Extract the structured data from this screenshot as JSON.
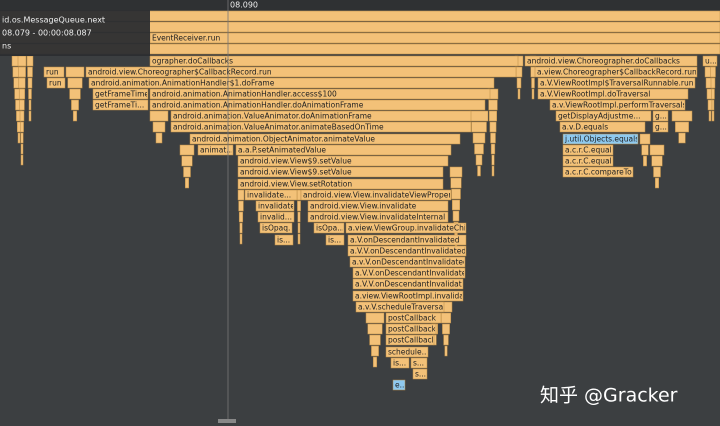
{
  "ruler": "08.090",
  "tooltip": {
    "title": "id.os.MessageQueue.next",
    "time": "08.079 - 00:00:08.087",
    "unit": "ns"
  },
  "slices": [
    "EventReceiver.run",
    "ographer.doCallbacks",
    "android.view.Choreographer.doCallbacks",
    "u...",
    "run",
    "android.view.Choreographer$CallbackRecord.run",
    "a.view.Choreographer$CallbackRecord.run",
    "run",
    "android.animation.AnimationHandler$1.doFrame",
    "a.V.ViewRootImpl$TraversalRunnable.run",
    "getFrameTime",
    "android.animation.AnimationHandler.access$100",
    "a.V.ViewRootImpl.doTraversal",
    "getFrameTi...",
    "android.animation.AnimationHandler.doAnimationFrame",
    "a.v.ViewRootImpl.performTraversals",
    "android.animation.ValueAnimator.doAnimationFrame",
    "getDisplayAdjustme...",
    "g...",
    "android.animation.ValueAnimator.animateBasedOnTime",
    "a.v.D.equals",
    "g...",
    "android.animation.ObjectAnimator.animateValue",
    "j.util.Objects.equals",
    "animat...",
    "a.a.P.setAnimatedValue",
    "a.c.r.C.equals",
    "android.view.View$9.setValue",
    "a.c.r.C.equals",
    "android.view.View$9.setValue",
    "a.c.r.C.compareTo",
    "android.view.View.setRotation",
    "invalidate...",
    "android.view.View.invalidateViewProperty",
    "invalidate",
    "android.view.View.invalidate",
    "invalid...",
    "android.view.View.invalidateInternal",
    "isOpaq...",
    "isOpa...",
    "a.view.ViewGroup.invalidateChild",
    "is...",
    "is...",
    "a.V.onDescendantInvalidated",
    "a.V.V.onDescendantInvalidated",
    "a.v.V.onDescendantInvalidated",
    "a.V.V.onDescendantInvalidated",
    "a.V.V.onDescendantInvalidated",
    "a.view.ViewRootImpl.invalidate",
    "a.v.V.scheduleTraversals",
    "postCallback",
    "postCallback...",
    "postCallback...",
    "schedule...",
    "is...",
    "s...",
    "s...",
    "e..."
  ],
  "watermark": "知乎 @Gracker"
}
